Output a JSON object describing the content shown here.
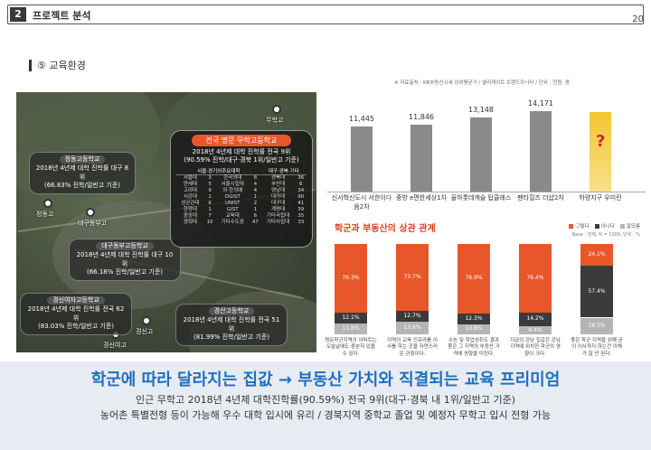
{
  "header": {
    "num": "2",
    "title": "프로젝트 분석",
    "page": "20"
  },
  "section": {
    "title": "⑤ 교육환경"
  },
  "map": {
    "pins": [
      {
        "name": "무학고"
      },
      {
        "name": "정동고"
      },
      {
        "name": "대구동부고"
      },
      {
        "name": "경신고"
      },
      {
        "name": "경신여고"
      }
    ],
    "labels": {
      "jeongdong": {
        "name": "정동고등학교",
        "text1": "2018년 4년제 대학 진학률 대구 8위",
        "text2": "(66.83% 진학/일반고 기준)"
      },
      "daegudongbu": {
        "name": "대구동부고등학교",
        "text1": "2018년 4년제 대학 진학률 대구 10위",
        "text2": "(66.18% 진학/일반고 기준)"
      },
      "gyeongsinyeo": {
        "name": "경신여자고등학교",
        "text1": "2018년 4년제 대학 진학률 전국 62위",
        "text2": "(83.03% 진학/일반고 기준)"
      },
      "gyeongsin": {
        "name": "경산고등학교",
        "text1": "2018년 4년제 대학 진학률 전국 51위",
        "text2": "(81.99% 진학/일반고 기준)"
      }
    },
    "rankbox": {
      "title": "전국 명문 무학고등학교",
      "line1": "2018년 4년제 대학 진학률 전국 9위",
      "line2": "(90.59% 진학/대구·경북 1위/일반고 기준)",
      "headers": [
        "서울·경기외주요대학",
        "",
        "대구·경북·기타",
        ""
      ],
      "rows": [
        [
          "서울대",
          "3",
          "한국외대",
          "8",
          "경북대",
          "36"
        ],
        [
          "연세대",
          "5",
          "서울시립대",
          "4",
          "부산대",
          "6"
        ],
        [
          "고려대",
          "9",
          "외·한의예",
          "4",
          "영남대",
          "34"
        ],
        [
          "서강대",
          "1",
          "DGIST",
          "1",
          "대가대",
          "90"
        ],
        [
          "성균관대",
          "6",
          "UNIST",
          "2",
          "대구대",
          "41"
        ],
        [
          "한양대",
          "1",
          "GIST",
          "1",
          "계명대",
          "39"
        ],
        [
          "중앙대",
          "7",
          "교육대",
          "6",
          "기타국립대",
          "35"
        ],
        [
          "경희대",
          "10",
          "기타수도권",
          "47",
          "기타사립대",
          "33"
        ]
      ]
    }
  },
  "top_chart": {
    "source": "※ 자료출처 : KB부동산시세 상위평균가 / 엘리케이트 트렌드모니터 / 단위 : 천원, 평",
    "chart_data": {
      "type": "bar",
      "categories": [
        "신서혁신도시 서한이다음2차",
        "중방 e편한세상1차",
        "율하롯데캐슬 탑클래스",
        "펜타힐즈 더샵2차",
        "하양지구 우미린"
      ],
      "values": [
        11445,
        11846,
        13148,
        14171,
        null
      ],
      "value_labels": [
        "11,445",
        "11,846",
        "13,148",
        "14,171",
        "?"
      ]
    }
  },
  "bottom_chart": {
    "title": "학군과 부동산의 상관 관계",
    "legend": [
      "그렇다",
      "아니다",
      "잘모름"
    ],
    "base": "Base : 전체, N = 1000, 단위 : %",
    "colors": {
      "yes": "#e8572a",
      "no": "#3b3b3b",
      "unknown": "#b5b5b5"
    },
    "chart_data": {
      "type": "bar",
      "categories": [
        "명문 학군 지역 아파트",
        "지역의 교육 인프라",
        "명문 학군 지역 이사",
        "학군은 집값 결정 요소",
        "좋은 학군 지역 거주"
      ],
      "series": [
        {
          "name": "그렇다",
          "values": [
            76.3,
            73.7,
            76.9,
            76.4,
            24.1
          ]
        },
        {
          "name": "아니다",
          "values": [
            12.1,
            12.7,
            12.3,
            14.2,
            57.4
          ]
        },
        {
          "name": "잘모름",
          "values": [
            11.6,
            13.6,
            10.8,
            9.4,
            18.5
          ]
        }
      ]
    },
    "captions": [
      "명문학군지역의 아파트는 오늘날에도 충분히 있을 수 있다.",
      "지역의 교육 인프라를 이사를 하는 곳을 자연스러운 관점이다.",
      "수능 및 학업성취도 결과 좋은 그 지역의 부동산 가격에 영향을 미친다.",
      "지금의 강남 집값은 강남지역에 위치한 학군의 영향이 크다.",
      "좋은 학군 지역을 위해 굳이 이사까지 하는건 이해가 잘 안 된다."
    ]
  },
  "banner": {
    "headline": "학군에 따라 달라지는 집값 → 부동산 가치와 직결되는 교육 프리미엄",
    "line1": "인근 무학고 2018년 4년제 대학진학률(90.59%) 전국 9위(대구·경북 내 1위/일반고 기준)",
    "line2": "농어촌 특별전형 등이 가능해 우수 대학 입시에 유리 / 경북지역 중학교 졸업 및 예정자 무학고 입시 전형 가능"
  }
}
